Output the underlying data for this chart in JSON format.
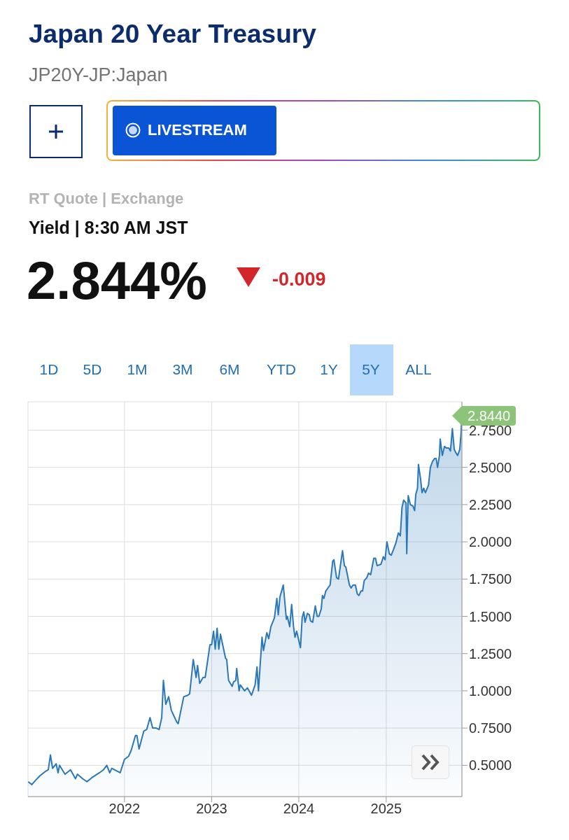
{
  "chart_data": {
    "type": "area",
    "title": "Japan 20 Year Treasury",
    "subtitle": "JP20Y-JP:Japan",
    "annotations": [
      "LIVESTREAM",
      "RT Quote | Exchange",
      "Yield | 8:30 AM JST",
      "2.844%",
      "-0.009",
      "1D",
      "5D",
      "1M",
      "3M",
      "6M",
      "YTD",
      "1Y",
      "5Y",
      "ALL",
      {
        "text": "2.8440",
        "x": "2025-11-14",
        "y": 2.844
      }
    ],
    "x": [
      "2020-11-24",
      "2020-12-09",
      "2020-12-25",
      "2021-01-12",
      "2021-02-05",
      "2021-02-16",
      "2021-02-25",
      "2021-03-06",
      "2021-03-21",
      "2021-03-29",
      "2021-04-04",
      "2021-04-27",
      "2021-05-20",
      "2021-06-10",
      "2021-06-18",
      "2021-07-10",
      "2021-07-28",
      "2021-08-20",
      "2021-09-18",
      "2021-10-05",
      "2021-10-19",
      "2021-10-31",
      "2021-11-09",
      "2021-12-14",
      "2022-01-01",
      "2022-01-18",
      "2022-01-29",
      "2022-02-16",
      "2022-02-22",
      "2022-03-03",
      "2022-03-23",
      "2022-04-04",
      "2022-04-18",
      "2022-04-29",
      "2022-05-14",
      "2022-05-26",
      "2022-06-06",
      "2022-06-13",
      "2022-06-23",
      "2022-07-05",
      "2022-07-16",
      "2022-08-08",
      "2022-08-14",
      "2022-09-06",
      "2022-09-23",
      "2022-10-01",
      "2022-10-16",
      "2022-10-28",
      "2022-11-03",
      "2022-11-12",
      "2022-11-26",
      "2022-12-05",
      "2022-12-25",
      "2023-01-01",
      "2023-01-09",
      "2023-01-16",
      "2023-01-24",
      "2023-01-31",
      "2023-02-07",
      "2023-02-28",
      "2023-03-05",
      "2023-03-13",
      "2023-03-28",
      "2023-04-03",
      "2023-04-12",
      "2023-04-16",
      "2023-04-26",
      "2023-05-01",
      "2023-05-19",
      "2023-05-31",
      "2023-06-17",
      "2023-07-02",
      "2023-07-10",
      "2023-07-16",
      "2023-07-31",
      "2023-08-06",
      "2023-08-20",
      "2023-08-28",
      "2023-09-06",
      "2023-09-21",
      "2023-10-01",
      "2023-10-07",
      "2023-10-14",
      "2023-10-28",
      "2023-11-10",
      "2023-11-14",
      "2023-11-24",
      "2023-12-02",
      "2023-12-10",
      "2023-12-16",
      "2023-12-23",
      "2024-01-08",
      "2024-01-15",
      "2024-01-22",
      "2024-01-27",
      "2024-02-06",
      "2024-02-14",
      "2024-02-19",
      "2024-02-28",
      "2024-03-10",
      "2024-03-18",
      "2024-03-25",
      "2024-04-04",
      "2024-04-09",
      "2024-04-15",
      "2024-04-23",
      "2024-05-02",
      "2024-05-11",
      "2024-05-22",
      "2024-05-27",
      "2024-06-07",
      "2024-06-15",
      "2024-07-02",
      "2024-07-10",
      "2024-07-16",
      "2024-07-31",
      "2024-08-07",
      "2024-08-15",
      "2024-08-25",
      "2024-09-02",
      "2024-09-09",
      "2024-09-17",
      "2024-09-24",
      "2024-10-01",
      "2024-10-12",
      "2024-10-19",
      "2024-10-28",
      "2024-11-10",
      "2024-11-17",
      "2024-11-24",
      "2024-12-10",
      "2024-12-20",
      "2024-12-27",
      "2025-01-04",
      "2025-01-14",
      "2025-01-22",
      "2025-02-01",
      "2025-02-10",
      "2025-02-21",
      "2025-03-01",
      "2025-03-08",
      "2025-03-15",
      "2025-03-25",
      "2025-03-28",
      "2025-04-03",
      "2025-04-12",
      "2025-04-23",
      "2025-04-30",
      "2025-05-05",
      "2025-05-12",
      "2025-05-16",
      "2025-05-25",
      "2025-05-31",
      "2025-06-07",
      "2025-06-14",
      "2025-06-27",
      "2025-07-05",
      "2025-07-14",
      "2025-07-23",
      "2025-07-29",
      "2025-08-04",
      "2025-08-12",
      "2025-08-15",
      "2025-08-24",
      "2025-09-02",
      "2025-09-10",
      "2025-09-20",
      "2025-09-27",
      "2025-10-05",
      "2025-10-13",
      "2025-10-19",
      "2025-10-27",
      "2025-11-05",
      "2025-11-10",
      "2025-11-14"
    ],
    "series": [
      {
        "color": "#2b78b9",
        "values": [
          0.39,
          0.37,
          0.4,
          0.43,
          0.46,
          0.47,
          0.57,
          0.48,
          0.51,
          0.45,
          0.5,
          0.44,
          0.47,
          0.41,
          0.44,
          0.41,
          0.39,
          0.42,
          0.45,
          0.47,
          0.5,
          0.45,
          0.48,
          0.45,
          0.54,
          0.56,
          0.6,
          0.7,
          0.7,
          0.61,
          0.73,
          0.74,
          0.82,
          0.75,
          0.75,
          0.74,
          0.82,
          1.07,
          0.91,
          0.96,
          0.87,
          0.79,
          0.78,
          0.96,
          0.97,
          0.98,
          1.21,
          1.09,
          1.17,
          1.05,
          1.09,
          1.09,
          1.31,
          1.31,
          1.4,
          1.28,
          1.42,
          1.28,
          1.38,
          1.22,
          1.21,
          1.07,
          1.03,
          1.06,
          1.07,
          1.15,
          1.0,
          1.04,
          1.0,
          1.02,
          0.97,
          1.04,
          1.16,
          1.0,
          1.36,
          1.27,
          1.39,
          1.35,
          1.43,
          1.49,
          1.62,
          1.51,
          1.63,
          1.71,
          1.48,
          1.5,
          1.43,
          1.58,
          1.43,
          1.36,
          1.4,
          1.29,
          1.49,
          1.53,
          1.46,
          1.52,
          1.51,
          1.47,
          1.46,
          1.57,
          1.5,
          1.5,
          1.55,
          1.64,
          1.62,
          1.67,
          1.69,
          1.71,
          1.87,
          1.88,
          1.76,
          1.75,
          1.94,
          1.84,
          1.83,
          1.71,
          1.69,
          1.71,
          1.71,
          1.65,
          1.64,
          1.67,
          1.67,
          1.74,
          1.76,
          1.79,
          1.78,
          1.89,
          1.89,
          1.84,
          1.85,
          1.9,
          1.88,
          2.0,
          1.92,
          1.91,
          1.95,
          1.99,
          2.06,
          2.04,
          2.23,
          2.28,
          2.26,
          1.92,
          2.31,
          2.25,
          2.24,
          2.21,
          2.32,
          2.36,
          2.52,
          2.42,
          2.33,
          2.36,
          2.33,
          2.38,
          2.5,
          2.54,
          2.56,
          2.56,
          2.5,
          2.58,
          2.69,
          2.58,
          2.64,
          2.63,
          2.63,
          2.61,
          2.76,
          2.62,
          2.6,
          2.58,
          2.62,
          2.72,
          2.844
        ]
      }
    ],
    "xlim": [
      "2020-11-23",
      "2025-11-14"
    ],
    "xticks": [
      "2022",
      "2023",
      "2024",
      "2025"
    ],
    "ylim": [
      0.29,
      2.94
    ],
    "yticks": [
      {
        "value": 0.5,
        "label": "0.5000"
      },
      {
        "value": 0.75,
        "label": "0.7500"
      },
      {
        "value": 1,
        "label": "1.0000"
      },
      {
        "value": 1.25,
        "label": "1.2500"
      },
      {
        "value": 1.5,
        "label": "1.5000"
      },
      {
        "value": 1.75,
        "label": "1.7500"
      },
      {
        "value": 2,
        "label": "2.0000"
      },
      {
        "value": 2.25,
        "label": "2.2500"
      },
      {
        "value": 2.5,
        "label": "2.5000"
      },
      {
        "value": 2.75,
        "label": "2.7500"
      }
    ],
    "grid": true
  }
}
